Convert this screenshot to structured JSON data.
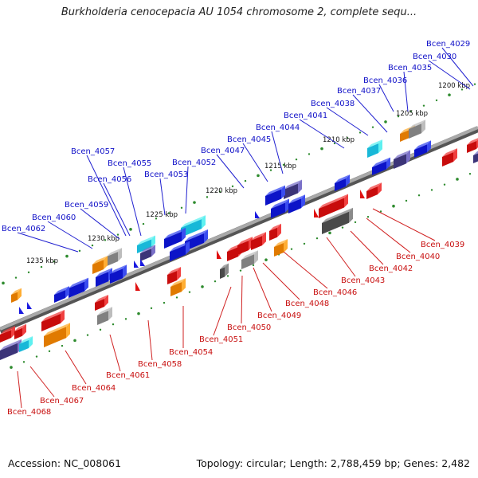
{
  "title": "Burkholderia cenocepacia AU 1054 chromosome 2, complete sequ...",
  "footer": {
    "accession": "Accession: NC_008061",
    "info": "Topology: circular; Length: 2,788,459 bp; Genes: 2,482"
  },
  "colors": {
    "backbone": "#8a8a8a",
    "tick": "#2e8b2e",
    "top_label": "#1010c8",
    "bottom_label": "#c81010"
  },
  "scale_ticks": [
    {
      "label": "1200 kbp",
      "x": 1200
    },
    {
      "label": "1205 kbp",
      "x": 1205
    },
    {
      "label": "1210 kbp",
      "x": 1210
    },
    {
      "label": "1215 kbp",
      "x": 1215
    },
    {
      "label": "1220 kbp",
      "x": 1220
    },
    {
      "label": "1225 kbp",
      "x": 1225
    },
    {
      "label": "1230 kbp",
      "x": 1230
    },
    {
      "label": "1235 kbp",
      "x": 1235
    }
  ],
  "top_genes": [
    "Bcen_4029",
    "Bcen_4030",
    "Bcen_4035",
    "Bcen_4036",
    "Bcen_4037",
    "Bcen_4038",
    "Bcen_4041",
    "Bcen_4044",
    "Bcen_4045",
    "Bcen_4047",
    "Bcen_4052",
    "Bcen_4053",
    "Bcen_4055",
    "Bcen_4056",
    "Bcen_4057",
    "Bcen_4059",
    "Bcen_4060",
    "Bcen_4062"
  ],
  "bottom_genes": [
    "Bcen_4039",
    "Bcen_4040",
    "Bcen_4042",
    "Bcen_4043",
    "Bcen_4046",
    "Bcen_4048",
    "Bcen_4049",
    "Bcen_4050",
    "Bcen_4051",
    "Bcen_4054",
    "Bcen_4058",
    "Bcen_4061",
    "Bcen_4064",
    "Bcen_4067",
    "Bcen_4068"
  ]
}
